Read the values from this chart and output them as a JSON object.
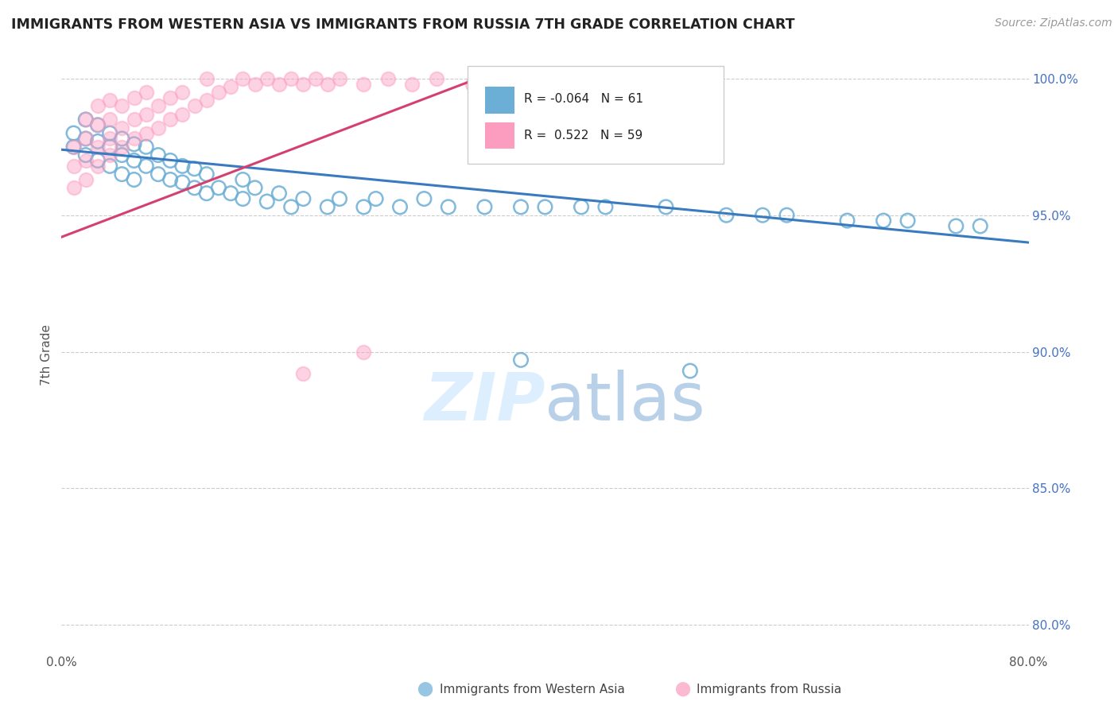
{
  "title": "IMMIGRANTS FROM WESTERN ASIA VS IMMIGRANTS FROM RUSSIA 7TH GRADE CORRELATION CHART",
  "source_text": "Source: ZipAtlas.com",
  "ylabel": "7th Grade",
  "xmin": 0.0,
  "xmax": 0.08,
  "ymin": 0.79,
  "ymax": 1.008,
  "ytick_labels": [
    "80.0%",
    "85.0%",
    "90.0%",
    "95.0%",
    "100.0%"
  ],
  "ytick_values": [
    0.8,
    0.85,
    0.9,
    0.95,
    1.0
  ],
  "legend_blue_label": "Immigrants from Western Asia",
  "legend_pink_label": "Immigrants from Russia",
  "R_blue": -0.064,
  "N_blue": 61,
  "R_pink": 0.522,
  "N_pink": 59,
  "blue_color": "#6baed6",
  "pink_color": "#fc9cbf",
  "blue_line_color": "#3a7abf",
  "pink_line_color": "#d44070",
  "watermark_color": "#ddeeff",
  "blue_scatter_x": [
    0.001,
    0.001,
    0.002,
    0.002,
    0.002,
    0.003,
    0.003,
    0.003,
    0.004,
    0.004,
    0.004,
    0.005,
    0.005,
    0.005,
    0.006,
    0.006,
    0.006,
    0.007,
    0.007,
    0.008,
    0.008,
    0.009,
    0.009,
    0.01,
    0.01,
    0.011,
    0.011,
    0.012,
    0.012,
    0.013,
    0.014,
    0.015,
    0.015,
    0.016,
    0.017,
    0.018,
    0.019,
    0.02,
    0.022,
    0.023,
    0.025,
    0.026,
    0.028,
    0.03,
    0.032,
    0.035,
    0.038,
    0.04,
    0.043,
    0.045,
    0.05,
    0.055,
    0.058,
    0.06,
    0.065,
    0.068,
    0.07,
    0.074,
    0.076,
    0.038,
    0.052
  ],
  "blue_scatter_y": [
    0.975,
    0.98,
    0.972,
    0.978,
    0.985,
    0.97,
    0.977,
    0.983,
    0.968,
    0.975,
    0.98,
    0.965,
    0.972,
    0.978,
    0.963,
    0.97,
    0.976,
    0.968,
    0.975,
    0.965,
    0.972,
    0.963,
    0.97,
    0.962,
    0.968,
    0.96,
    0.967,
    0.958,
    0.965,
    0.96,
    0.958,
    0.963,
    0.956,
    0.96,
    0.955,
    0.958,
    0.953,
    0.956,
    0.953,
    0.956,
    0.953,
    0.956,
    0.953,
    0.956,
    0.953,
    0.953,
    0.953,
    0.953,
    0.953,
    0.953,
    0.953,
    0.95,
    0.95,
    0.95,
    0.948,
    0.948,
    0.948,
    0.946,
    0.946,
    0.897,
    0.893
  ],
  "pink_scatter_x": [
    0.001,
    0.001,
    0.001,
    0.002,
    0.002,
    0.002,
    0.002,
    0.003,
    0.003,
    0.003,
    0.003,
    0.004,
    0.004,
    0.004,
    0.004,
    0.005,
    0.005,
    0.005,
    0.006,
    0.006,
    0.006,
    0.007,
    0.007,
    0.007,
    0.008,
    0.008,
    0.009,
    0.009,
    0.01,
    0.01,
    0.011,
    0.012,
    0.012,
    0.013,
    0.014,
    0.015,
    0.016,
    0.017,
    0.018,
    0.019,
    0.02,
    0.021,
    0.022,
    0.023,
    0.025,
    0.027,
    0.029,
    0.031,
    0.034,
    0.036,
    0.038,
    0.04,
    0.042,
    0.045,
    0.048,
    0.051,
    0.054,
    0.025,
    0.02
  ],
  "pink_scatter_y": [
    0.96,
    0.968,
    0.975,
    0.963,
    0.97,
    0.978,
    0.985,
    0.968,
    0.975,
    0.983,
    0.99,
    0.972,
    0.978,
    0.985,
    0.992,
    0.975,
    0.982,
    0.99,
    0.978,
    0.985,
    0.993,
    0.98,
    0.987,
    0.995,
    0.982,
    0.99,
    0.985,
    0.993,
    0.987,
    0.995,
    0.99,
    0.992,
    1.0,
    0.995,
    0.997,
    1.0,
    0.998,
    1.0,
    0.998,
    1.0,
    0.998,
    1.0,
    0.998,
    1.0,
    0.998,
    1.0,
    0.998,
    1.0,
    0.998,
    1.0,
    0.998,
    1.0,
    0.998,
    1.0,
    0.998,
    1.0,
    0.998,
    0.9,
    0.892
  ],
  "blue_line_x": [
    0.0,
    0.08
  ],
  "blue_line_y": [
    0.974,
    0.94
  ],
  "pink_line_x": [
    0.0,
    0.035
  ],
  "pink_line_y": [
    0.942,
    1.001
  ]
}
